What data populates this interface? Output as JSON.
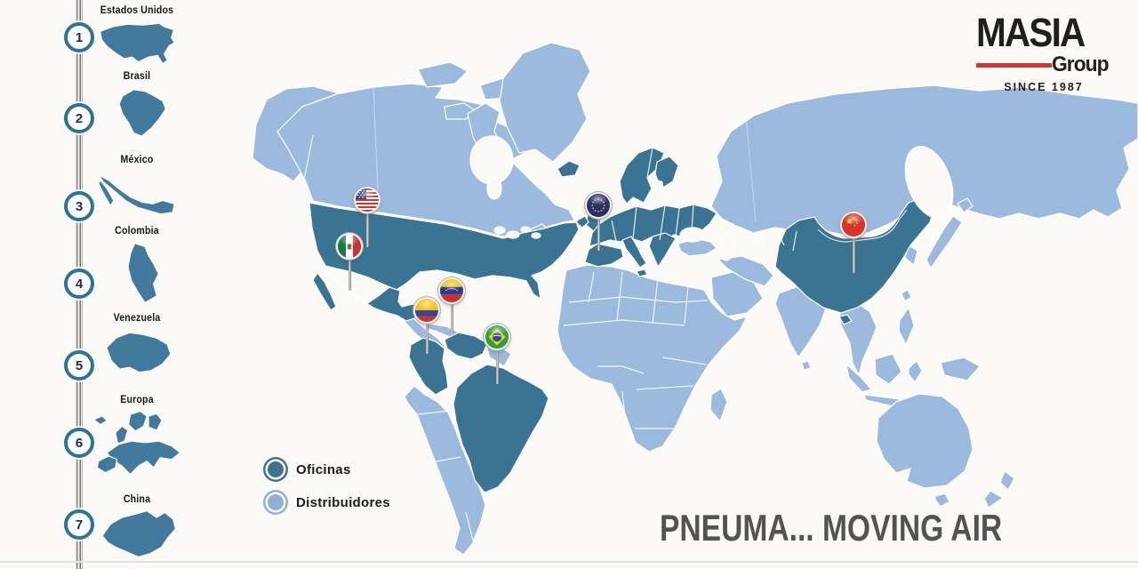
{
  "logo": {
    "name": "MASIA",
    "suffix": "Group",
    "since": "SINCE 1987"
  },
  "slogan": "PNEUMA... MOVING AIR",
  "sidebar": {
    "items": [
      {
        "number": "1",
        "label": "Estados Unidos"
      },
      {
        "number": "2",
        "label": "Brasil"
      },
      {
        "number": "3",
        "label": "México"
      },
      {
        "number": "4",
        "label": "Colombia"
      },
      {
        "number": "5",
        "label": "Venezuela"
      },
      {
        "number": "6",
        "label": "Europa"
      },
      {
        "number": "7",
        "label": "China"
      }
    ]
  },
  "legend": {
    "items": [
      {
        "label": "Oficinas",
        "color": "#3d7492"
      },
      {
        "label": "Distribuidores",
        "color": "#8fb0d9"
      }
    ]
  },
  "map": {
    "colors": {
      "office": "#3b7492",
      "distributor": "#9bbade",
      "sidebar_teal": "#417a9c",
      "ring_teal": "#2e7296",
      "logo_red": "#d0382e"
    },
    "pins": [
      {
        "id": "usa",
        "label": "Estados Unidos",
        "flag": "usa-flag-icon"
      },
      {
        "id": "mexico",
        "label": "México",
        "flag": "mexico-flag-icon"
      },
      {
        "id": "colombia",
        "label": "Colombia",
        "flag": "colombia-flag-icon"
      },
      {
        "id": "venezuela",
        "label": "Venezuela",
        "flag": "venezuela-flag-icon"
      },
      {
        "id": "brasil",
        "label": "Brasil",
        "flag": "brazil-flag-icon"
      },
      {
        "id": "europa",
        "label": "Europa",
        "flag": "eu-flag-icon"
      },
      {
        "id": "china",
        "label": "China",
        "flag": "china-flag-icon"
      }
    ]
  }
}
